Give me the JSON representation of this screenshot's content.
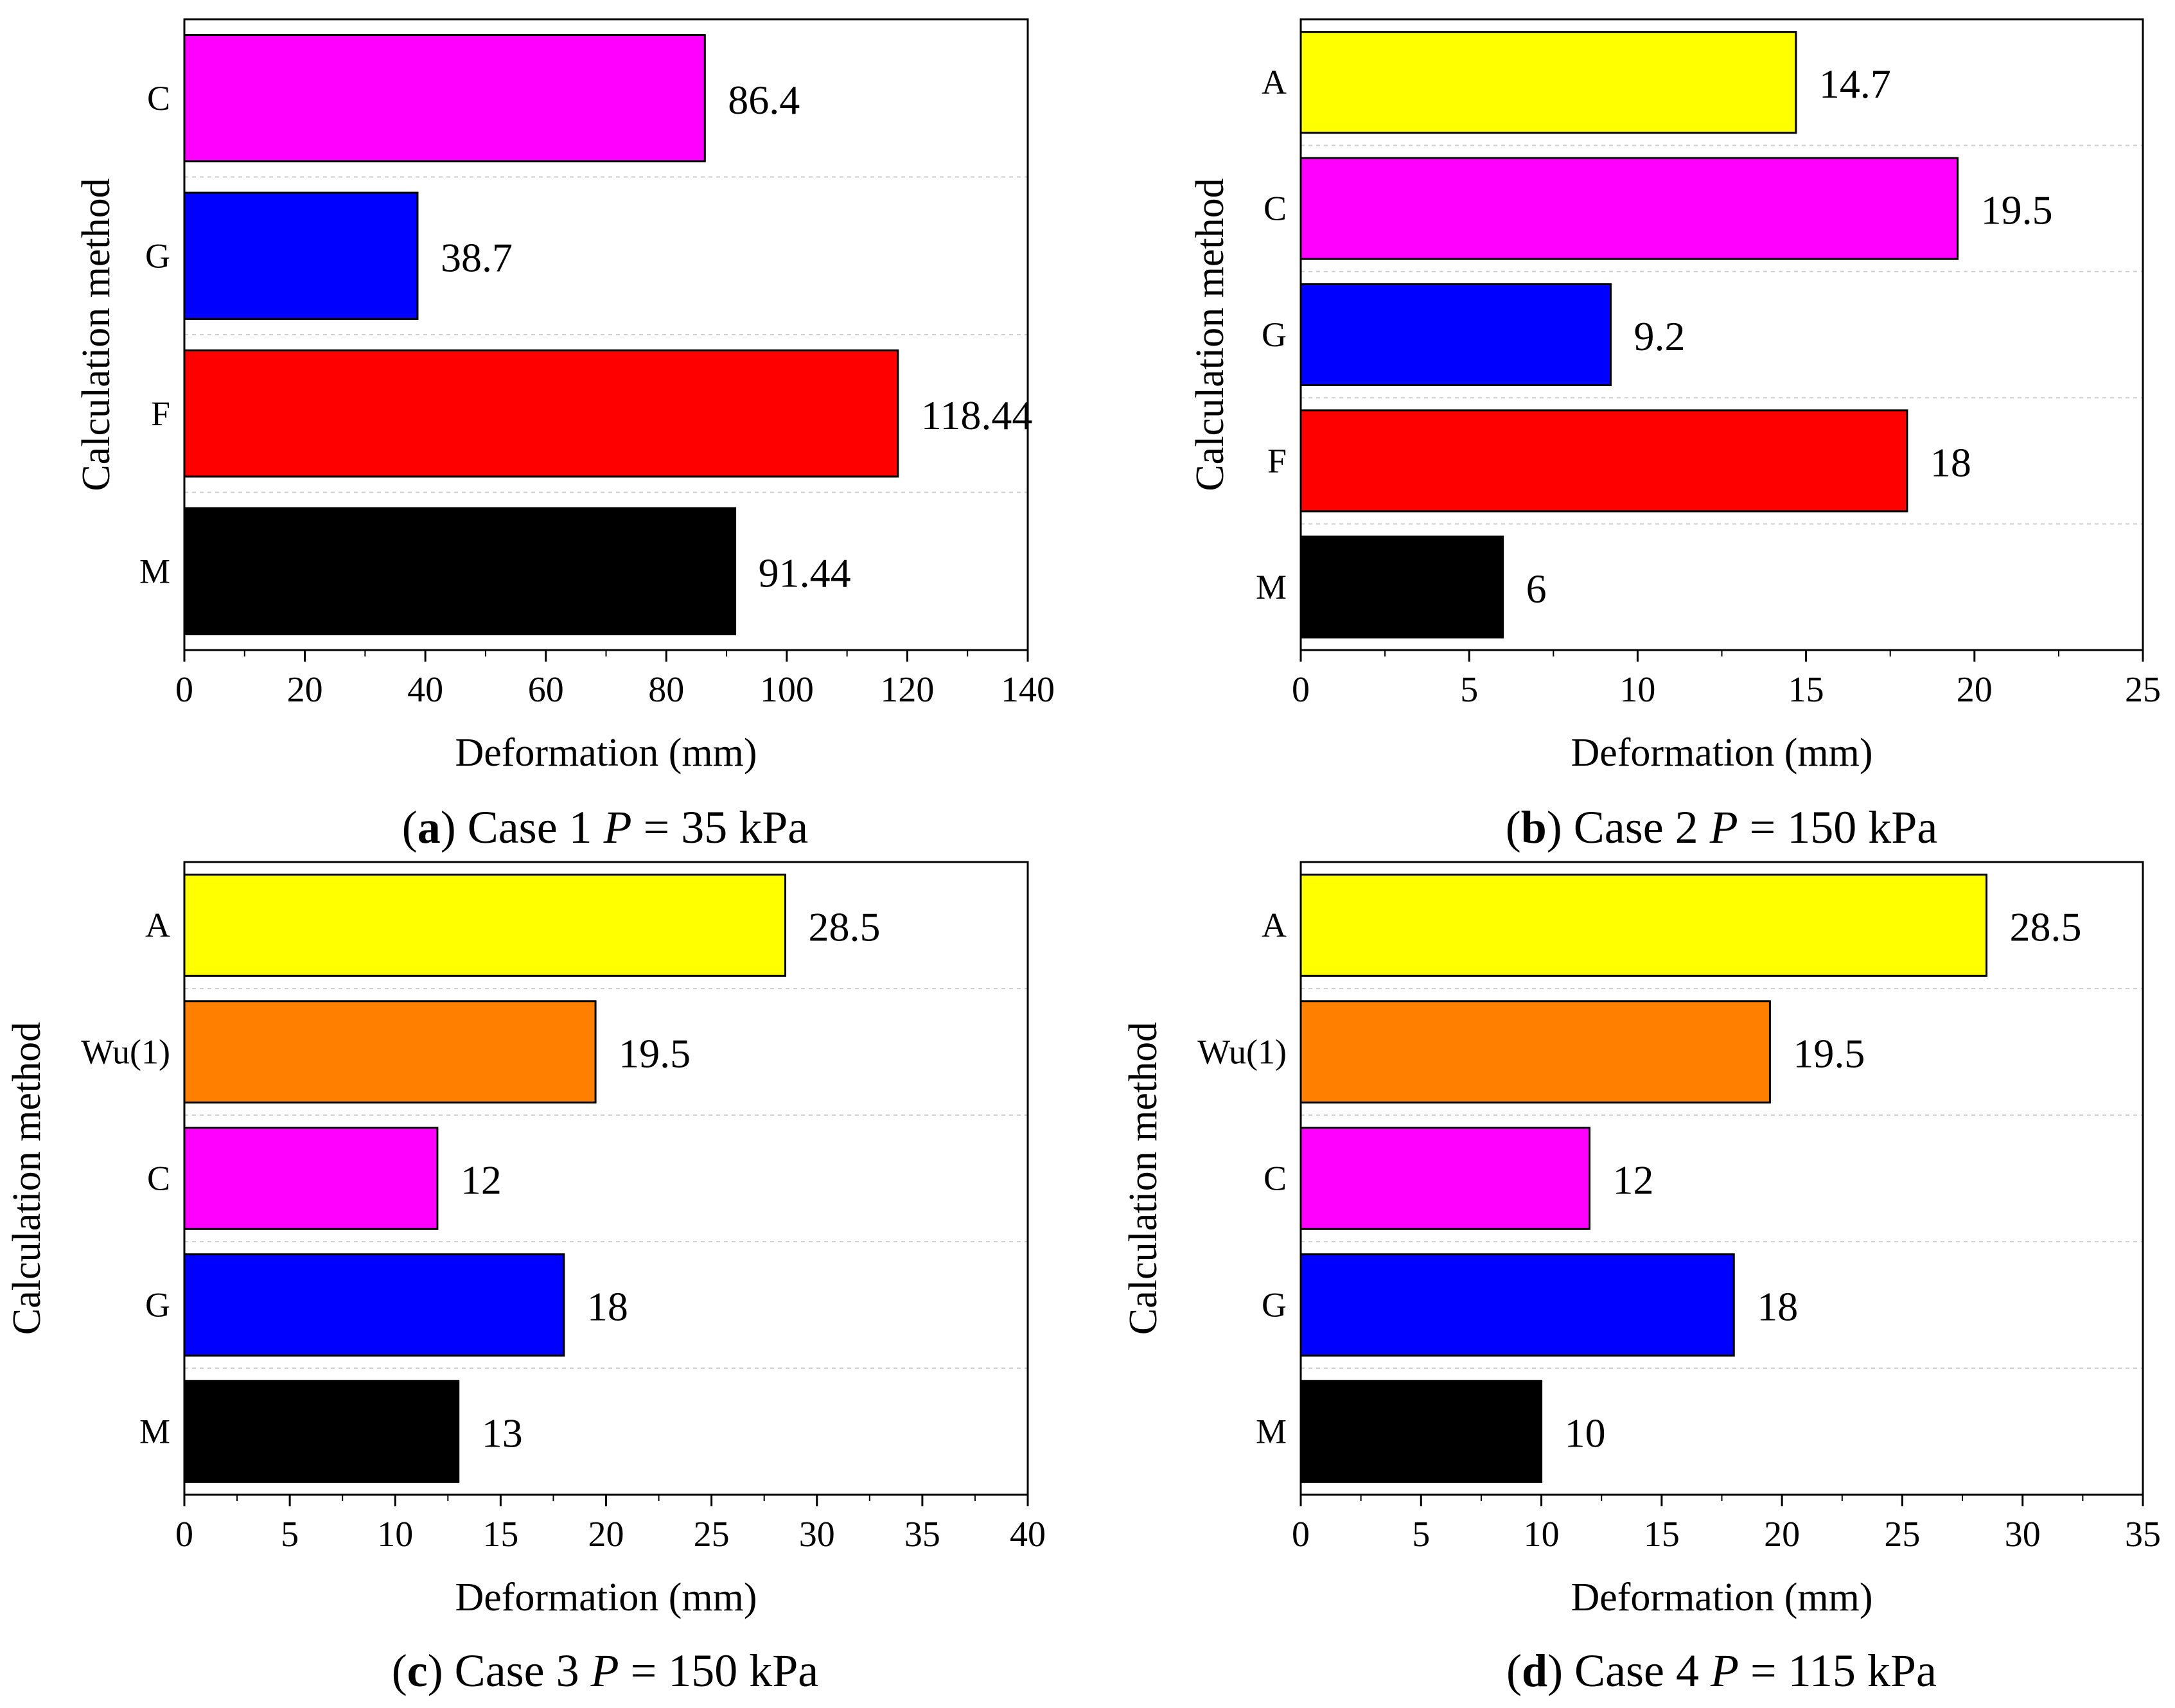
{
  "chart_data": [
    {
      "type": "bar",
      "orientation": "horizontal",
      "caption": {
        "letter": "a",
        "text": "Case 1",
        "var": "P",
        "eq": "= 35 kPa"
      },
      "xlabel": "Deformation (mm)",
      "ylabel": "Calculation method",
      "xlim": [
        0,
        140
      ],
      "xticks": [
        0,
        20,
        40,
        60,
        80,
        100,
        120,
        140
      ],
      "categories": [
        "C",
        "G",
        "F",
        "M"
      ],
      "values": [
        86.4,
        38.7,
        118.44,
        91.44
      ],
      "value_labels": [
        "86.4",
        "38.7",
        "118.44",
        "91.44"
      ],
      "colors": [
        "#ff00ff",
        "#0000ff",
        "#ff0000",
        "#000000"
      ]
    },
    {
      "type": "bar",
      "orientation": "horizontal",
      "caption": {
        "letter": "b",
        "text": "Case 2",
        "var": "P",
        "eq": "= 150 kPa"
      },
      "xlabel": "Deformation (mm)",
      "ylabel": "Calculation method",
      "xlim": [
        0,
        25
      ],
      "xticks": [
        0,
        5,
        10,
        15,
        20,
        25
      ],
      "categories": [
        "A",
        "C",
        "G",
        "F",
        "M"
      ],
      "values": [
        14.7,
        19.5,
        9.2,
        18,
        6
      ],
      "value_labels": [
        "14.7",
        "19.5",
        "9.2",
        "18",
        "6"
      ],
      "colors": [
        "#ffff00",
        "#ff00ff",
        "#0000ff",
        "#ff0000",
        "#000000"
      ]
    },
    {
      "type": "bar",
      "orientation": "horizontal",
      "caption": {
        "letter": "c",
        "text": "Case 3",
        "var": "P",
        "eq": "= 150 kPa"
      },
      "xlabel": "Deformation (mm)",
      "ylabel": "Calculation method",
      "xlim": [
        0,
        40
      ],
      "xticks": [
        0,
        5,
        10,
        15,
        20,
        25,
        30,
        35,
        40
      ],
      "categories": [
        "A",
        "Wu(1)",
        "C",
        "G",
        "M"
      ],
      "values": [
        28.5,
        19.5,
        12,
        18,
        13
      ],
      "value_labels": [
        "28.5",
        "19.5",
        "12",
        "18",
        "13"
      ],
      "colors": [
        "#ffff00",
        "#ff8000",
        "#ff00ff",
        "#0000ff",
        "#000000"
      ]
    },
    {
      "type": "bar",
      "orientation": "horizontal",
      "caption": {
        "letter": "d",
        "text": "Case 4",
        "var": "P",
        "eq": "= 115 kPa"
      },
      "xlabel": "Deformation (mm)",
      "ylabel": "Calculation method",
      "xlim": [
        0,
        35
      ],
      "xticks": [
        0,
        5,
        10,
        15,
        20,
        25,
        30,
        35
      ],
      "categories": [
        "A",
        "Wu(1)",
        "C",
        "G",
        "M"
      ],
      "values": [
        28.5,
        19.5,
        12,
        18,
        10
      ],
      "value_labels": [
        "28.5",
        "19.5",
        "12",
        "18",
        "10"
      ],
      "colors": [
        "#ffff00",
        "#ff8000",
        "#ff00ff",
        "#0000ff",
        "#000000"
      ]
    }
  ]
}
